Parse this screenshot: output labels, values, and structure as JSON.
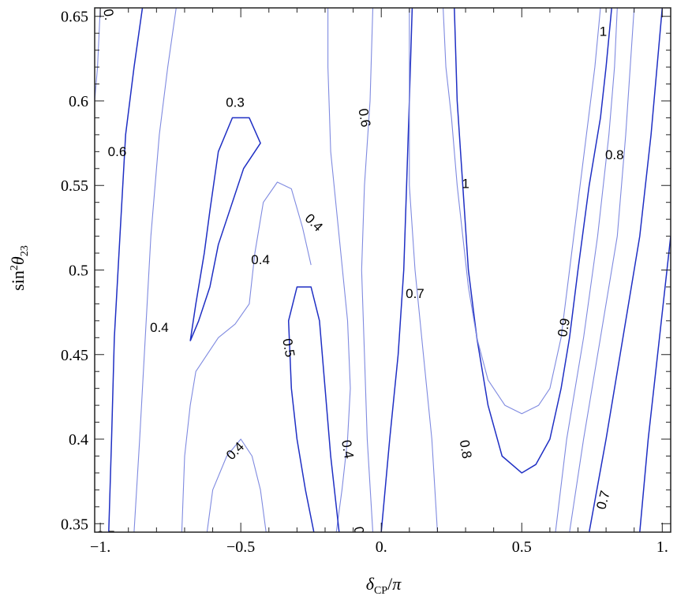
{
  "chart_data": {
    "type": "contour",
    "xlabel": "δ_CP/π",
    "ylabel": "sin²θ₂₃",
    "xlim": [
      -1.02,
      1.03
    ],
    "ylim": [
      0.345,
      0.655
    ],
    "xticks": [
      {
        "value": -1.0,
        "label": "−1."
      },
      {
        "value": -0.5,
        "label": "−0.5"
      },
      {
        "value": 0.0,
        "label": "0."
      },
      {
        "value": 0.5,
        "label": "0.5"
      },
      {
        "value": 1.0,
        "label": "1."
      }
    ],
    "yticks": [
      {
        "value": 0.35,
        "label": "0.35"
      },
      {
        "value": 0.4,
        "label": "0.4"
      },
      {
        "value": 0.45,
        "label": "0.45"
      },
      {
        "value": 0.5,
        "label": "0.5"
      },
      {
        "value": 0.55,
        "label": "0.55"
      },
      {
        "value": 0.6,
        "label": "0.6"
      },
      {
        "value": 0.65,
        "label": "0.65"
      }
    ],
    "contours": [
      {
        "level": 0.3,
        "style": "dark",
        "points": [
          [
            -0.68,
            0.458
          ],
          [
            -0.66,
            0.48
          ],
          [
            -0.63,
            0.51
          ],
          [
            -0.61,
            0.535
          ],
          [
            -0.58,
            0.57
          ],
          [
            -0.53,
            0.59
          ],
          [
            -0.47,
            0.59
          ],
          [
            -0.43,
            0.575
          ],
          [
            -0.49,
            0.56
          ],
          [
            -0.53,
            0.54
          ],
          [
            -0.58,
            0.515
          ],
          [
            -0.61,
            0.49
          ],
          [
            -0.65,
            0.47
          ],
          [
            -0.68,
            0.458
          ]
        ]
      },
      {
        "level": 0.4,
        "style": "light",
        "points": [
          [
            -0.25,
            0.503
          ],
          [
            -0.28,
            0.525
          ],
          [
            -0.32,
            0.548
          ],
          [
            -0.37,
            0.552
          ],
          [
            -0.42,
            0.54
          ],
          [
            -0.45,
            0.51
          ],
          [
            -0.47,
            0.48
          ],
          [
            -0.52,
            0.468
          ],
          [
            -0.58,
            0.46
          ],
          [
            -0.62,
            0.45
          ],
          [
            -0.66,
            0.44
          ],
          [
            -0.68,
            0.42
          ],
          [
            -0.7,
            0.39
          ],
          [
            -0.71,
            0.345
          ]
        ]
      },
      {
        "level": 0.4,
        "style": "light",
        "points": [
          [
            -0.88,
            0.345
          ],
          [
            -0.86,
            0.4
          ],
          [
            -0.84,
            0.46
          ],
          [
            -0.82,
            0.52
          ],
          [
            -0.79,
            0.58
          ],
          [
            -0.76,
            0.62
          ],
          [
            -0.73,
            0.655
          ]
        ]
      },
      {
        "level": 0.4,
        "style": "light",
        "points": [
          [
            -0.62,
            0.345
          ],
          [
            -0.6,
            0.37
          ],
          [
            -0.55,
            0.39
          ],
          [
            -0.5,
            0.4
          ],
          [
            -0.46,
            0.39
          ],
          [
            -0.43,
            0.37
          ],
          [
            -0.41,
            0.345
          ]
        ]
      },
      {
        "level": 0.4,
        "style": "light",
        "points": [
          [
            -0.16,
            0.345
          ],
          [
            -0.14,
            0.37
          ],
          [
            -0.12,
            0.4
          ],
          [
            -0.11,
            0.43
          ],
          [
            -0.12,
            0.47
          ],
          [
            -0.15,
            0.52
          ],
          [
            -0.18,
            0.57
          ],
          [
            -0.19,
            0.62
          ],
          [
            -0.19,
            0.655
          ]
        ]
      },
      {
        "level": 0.5,
        "style": "dark",
        "points": [
          [
            -0.24,
            0.345
          ],
          [
            -0.27,
            0.37
          ],
          [
            -0.3,
            0.4
          ],
          [
            -0.32,
            0.43
          ],
          [
            -0.33,
            0.47
          ],
          [
            -0.3,
            0.49
          ],
          [
            -0.25,
            0.49
          ],
          [
            -0.22,
            0.47
          ],
          [
            -0.2,
            0.43
          ],
          [
            -0.18,
            0.39
          ],
          [
            -0.15,
            0.345
          ]
        ]
      },
      {
        "level": 0.5,
        "style": "dark",
        "points": [
          [
            -0.97,
            0.345
          ],
          [
            -0.96,
            0.4
          ],
          [
            -0.95,
            0.46
          ],
          [
            -0.93,
            0.52
          ],
          [
            -0.91,
            0.58
          ],
          [
            -0.88,
            0.62
          ],
          [
            -0.85,
            0.655
          ]
        ]
      },
      {
        "level": 0.6,
        "style": "light",
        "points": [
          [
            -1.02,
            0.6
          ],
          [
            -1.01,
            0.62
          ],
          [
            -1.0,
            0.655
          ]
        ]
      },
      {
        "level": 0.6,
        "style": "light",
        "points": [
          [
            -0.03,
            0.345
          ],
          [
            -0.05,
            0.4
          ],
          [
            -0.06,
            0.45
          ],
          [
            -0.07,
            0.5
          ],
          [
            -0.06,
            0.55
          ],
          [
            -0.04,
            0.6
          ],
          [
            -0.03,
            0.655
          ]
        ]
      },
      {
        "level": 0.7,
        "style": "dark",
        "points": [
          [
            0.0,
            0.345
          ],
          [
            0.03,
            0.4
          ],
          [
            0.06,
            0.45
          ],
          [
            0.08,
            0.5
          ],
          [
            0.09,
            0.55
          ],
          [
            0.1,
            0.6
          ],
          [
            0.11,
            0.655
          ]
        ]
      },
      {
        "level": 0.8,
        "style": "light",
        "points": [
          [
            0.2,
            0.345
          ],
          [
            0.18,
            0.4
          ],
          [
            0.15,
            0.45
          ],
          [
            0.12,
            0.5
          ],
          [
            0.1,
            0.55
          ],
          [
            0.1,
            0.6
          ],
          [
            0.1,
            0.655
          ]
        ]
      },
      {
        "level": 0.9,
        "style": "dark",
        "points": [
          [
            0.26,
            0.655
          ],
          [
            0.27,
            0.6
          ],
          [
            0.29,
            0.55
          ],
          [
            0.31,
            0.5
          ],
          [
            0.34,
            0.46
          ],
          [
            0.38,
            0.42
          ],
          [
            0.43,
            0.39
          ],
          [
            0.5,
            0.38
          ],
          [
            0.55,
            0.385
          ],
          [
            0.6,
            0.4
          ],
          [
            0.64,
            0.43
          ],
          [
            0.67,
            0.46
          ],
          [
            0.7,
            0.5
          ],
          [
            0.74,
            0.55
          ],
          [
            0.78,
            0.59
          ],
          [
            0.8,
            0.62
          ],
          [
            0.82,
            0.655
          ]
        ]
      },
      {
        "level": 1.0,
        "style": "light",
        "points": [
          [
            0.22,
            0.655
          ],
          [
            0.23,
            0.62
          ],
          [
            0.25,
            0.59
          ],
          [
            0.27,
            0.55
          ],
          [
            0.29,
            0.52
          ],
          [
            0.31,
            0.49
          ],
          [
            0.34,
            0.46
          ],
          [
            0.38,
            0.435
          ],
          [
            0.44,
            0.42
          ],
          [
            0.5,
            0.415
          ],
          [
            0.56,
            0.42
          ],
          [
            0.6,
            0.43
          ],
          [
            0.64,
            0.46
          ],
          [
            0.67,
            0.5
          ],
          [
            0.7,
            0.54
          ],
          [
            0.73,
            0.58
          ],
          [
            0.76,
            0.62
          ],
          [
            0.78,
            0.655
          ]
        ]
      },
      {
        "level": 0.8,
        "style": "light",
        "points": [
          [
            0.62,
            0.345
          ],
          [
            0.66,
            0.4
          ],
          [
            0.72,
            0.46
          ],
          [
            0.77,
            0.52
          ],
          [
            0.81,
            0.58
          ],
          [
            0.83,
            0.62
          ],
          [
            0.84,
            0.655
          ]
        ]
      },
      {
        "level": 0.7,
        "style": "light",
        "points": [
          [
            0.67,
            0.345
          ],
          [
            0.72,
            0.4
          ],
          [
            0.78,
            0.46
          ],
          [
            0.84,
            0.52
          ],
          [
            0.87,
            0.58
          ],
          [
            0.9,
            0.655
          ]
        ]
      },
      {
        "level": 0.6,
        "style": "dark",
        "points": [
          [
            0.74,
            0.345
          ],
          [
            0.8,
            0.4
          ],
          [
            0.86,
            0.46
          ],
          [
            0.92,
            0.52
          ],
          [
            0.96,
            0.58
          ],
          [
            1.0,
            0.655
          ]
        ]
      },
      {
        "level": 0.5,
        "style": "dark",
        "points": [
          [
            0.92,
            0.345
          ],
          [
            0.95,
            0.4
          ],
          [
            0.99,
            0.46
          ],
          [
            1.03,
            0.52
          ]
        ]
      }
    ],
    "contour_labels": [
      {
        "text": "0.3",
        "x": -0.52,
        "y": 0.599,
        "angle": 0
      },
      {
        "text": "0.4",
        "x": -0.43,
        "y": 0.506,
        "angle": 0
      },
      {
        "text": "0.4",
        "x": -0.24,
        "y": 0.528,
        "angle": 45
      },
      {
        "text": "0.4",
        "x": -0.79,
        "y": 0.466,
        "angle": 0
      },
      {
        "text": "0.4",
        "x": -0.52,
        "y": 0.393,
        "angle": -45
      },
      {
        "text": "0.4",
        "x": -0.12,
        "y": 0.394,
        "angle": 80
      },
      {
        "text": "0.5",
        "x": -0.33,
        "y": 0.454,
        "angle": 80
      },
      {
        "text": "0.6",
        "x": -0.94,
        "y": 0.57,
        "angle": 0
      },
      {
        "text": "0.6",
        "x": -0.06,
        "y": 0.59,
        "angle": 80
      },
      {
        "text": "0.7",
        "x": 0.12,
        "y": 0.486,
        "angle": 0
      },
      {
        "text": "0.8",
        "x": 0.3,
        "y": 0.394,
        "angle": 80
      },
      {
        "text": "0.9",
        "x": 0.65,
        "y": 0.466,
        "angle": -80
      },
      {
        "text": "0.8",
        "x": 0.83,
        "y": 0.568,
        "angle": 0
      },
      {
        "text": "1",
        "x": 0.3,
        "y": 0.551,
        "angle": 0
      },
      {
        "text": "1",
        "x": 0.79,
        "y": 0.641,
        "angle": 0
      },
      {
        "text": "1",
        "x": 0.19,
        "y": 0.668,
        "angle": 0
      },
      {
        "text": "0.7",
        "x": 0.79,
        "y": 0.364,
        "angle": -75
      },
      {
        "text": "0.",
        "x": -0.97,
        "y": 0.651,
        "angle": 80
      },
      {
        "text": "0",
        "x": -0.08,
        "y": 0.346,
        "angle": 80
      },
      {
        "text": "0.5",
        "x": -0.98,
        "y": 0.343,
        "angle": 0
      }
    ]
  }
}
